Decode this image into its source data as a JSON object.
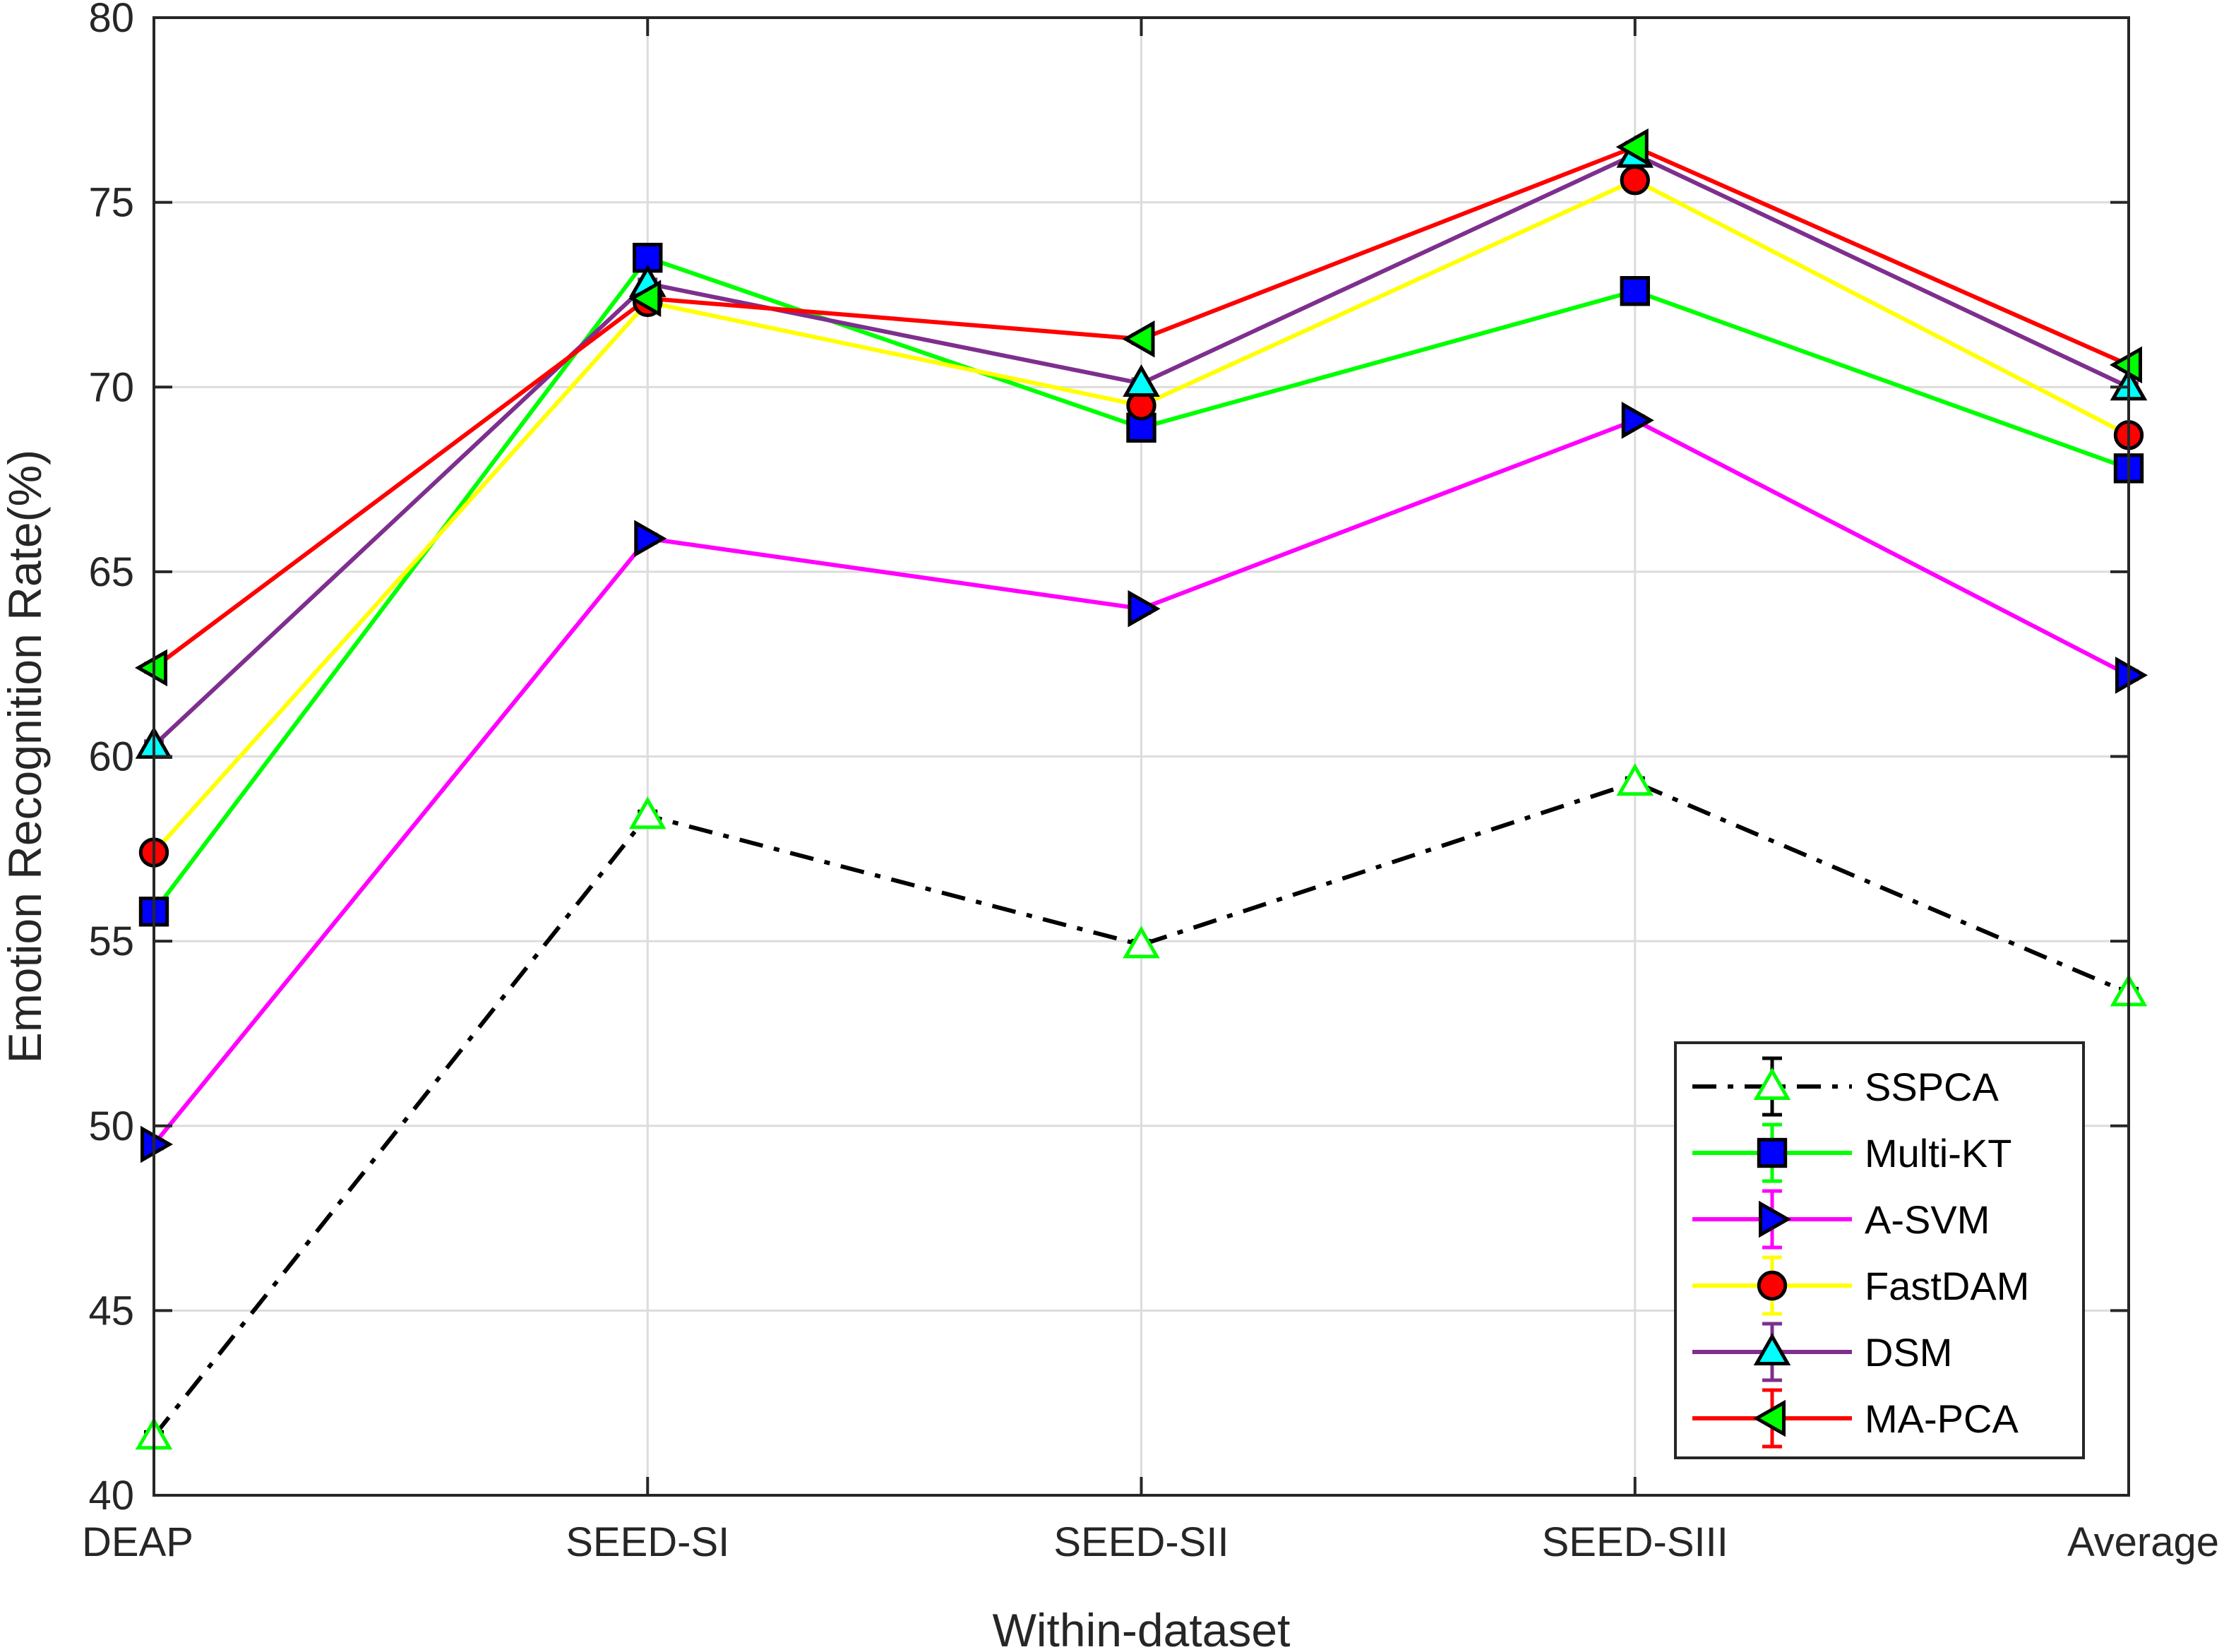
{
  "chart_data": {
    "type": "line",
    "title": "",
    "xlabel": "Within-dataset",
    "ylabel": "Emotion Recognition Rate(%)",
    "categories": [
      "DEAP",
      "SEED-SI",
      "SEED-SII",
      "SEED-SIII",
      "Average"
    ],
    "ylim": [
      40,
      80
    ],
    "yticks": [
      "40",
      "45",
      "50",
      "55",
      "60",
      "65",
      "70",
      "75",
      "80"
    ],
    "grid": true,
    "legend_position": "bottom-right",
    "series": [
      {
        "name": "SSPCA",
        "values": [
          41.6,
          58.4,
          54.9,
          59.3,
          53.6
        ],
        "color": "#000000",
        "dash": "dash-dot",
        "marker": "triangle-up",
        "marker_fill": "#ffffff",
        "marker_edge": "#00ff00"
      },
      {
        "name": "Multi-KT",
        "values": [
          55.8,
          73.5,
          68.9,
          72.6,
          67.8
        ],
        "color": "#00ff00",
        "dash": "solid",
        "marker": "square",
        "marker_fill": "#0000ff",
        "marker_edge": "#000000"
      },
      {
        "name": "A-SVM",
        "values": [
          49.5,
          65.9,
          64.0,
          69.1,
          62.2
        ],
        "color": "#ff00ff",
        "dash": "solid",
        "marker": "triangle-right",
        "marker_fill": "#0000ff",
        "marker_edge": "#000000"
      },
      {
        "name": "FastDAM",
        "values": [
          57.4,
          72.3,
          69.5,
          75.6,
          68.7
        ],
        "color": "#ffff00",
        "dash": "solid",
        "marker": "circle",
        "marker_fill": "#ff0000",
        "marker_edge": "#000000"
      },
      {
        "name": "DSM",
        "values": [
          60.3,
          72.8,
          70.1,
          76.3,
          70.0
        ],
        "color": "#7e2f8e",
        "dash": "solid",
        "marker": "triangle-up",
        "marker_fill": "#00ffff",
        "marker_edge": "#000000"
      },
      {
        "name": "MA-PCA",
        "values": [
          62.4,
          72.4,
          71.3,
          76.5,
          70.6
        ],
        "color": "#ff0000",
        "dash": "solid",
        "marker": "triangle-left",
        "marker_fill": "#00ff00",
        "marker_edge": "#000000"
      }
    ]
  }
}
